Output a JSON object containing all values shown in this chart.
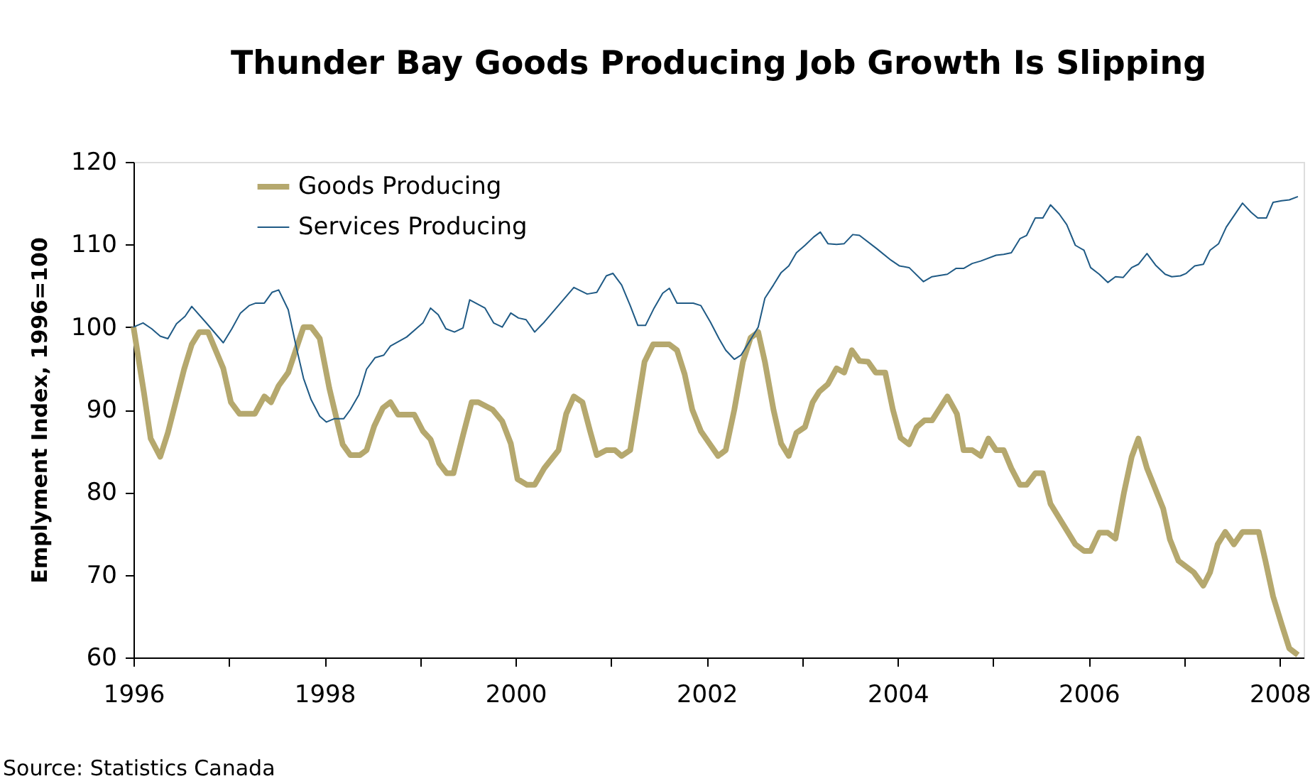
{
  "chart_data": {
    "type": "line",
    "title": "Thunder Bay Goods Producing Job Growth Is Slipping",
    "ylabel": "Emplyment Index, 1996=100",
    "annotations": [
      "Source: Statistics Canada"
    ],
    "xlim": [
      1996,
      2008.25
    ],
    "ylim": [
      60,
      120
    ],
    "xticks": [
      1996,
      {
        "value": 1997,
        "label": null
      },
      1998,
      {
        "value": 1999,
        "label": null
      },
      2000,
      {
        "value": 2001,
        "label": null
      },
      2002,
      {
        "value": 2003,
        "label": null
      },
      2004,
      {
        "value": 2005,
        "label": null
      },
      2006,
      {
        "value": 2007,
        "label": null
      },
      2008
    ],
    "yticks": [
      60,
      70,
      80,
      90,
      100,
      110,
      120
    ],
    "grid": false,
    "legend": "top left",
    "marker": "none",
    "line_style": "solid",
    "series": [
      {
        "name": "Goods Producing",
        "color": "#b5a86e",
        "x": [
          1996.0,
          1996.11,
          1996.18,
          1996.28,
          1996.36,
          1996.53,
          1996.61,
          1996.69,
          1996.78,
          1996.94,
          1997.02,
          1997.11,
          1997.27,
          1997.37,
          1997.44,
          1997.52,
          1997.62,
          1997.78,
          1997.86,
          1997.95,
          1998.05,
          1998.19,
          1998.27,
          1998.37,
          1998.44,
          1998.52,
          1998.61,
          1998.69,
          1998.77,
          1998.94,
          1999.03,
          1999.11,
          1999.2,
          1999.28,
          1999.35,
          1999.45,
          1999.54,
          1999.61,
          1999.76,
          1999.86,
          1999.95,
          2000.02,
          2000.12,
          2000.2,
          2000.3,
          2000.45,
          2000.53,
          2000.61,
          2000.7,
          2000.78,
          2000.85,
          2000.95,
          2001.04,
          2001.11,
          2001.2,
          2001.27,
          2001.35,
          2001.44,
          2001.61,
          2001.69,
          2001.77,
          2001.85,
          2001.94,
          2002.03,
          2002.12,
          2002.2,
          2002.29,
          2002.38,
          2002.46,
          2002.54,
          2002.61,
          2002.7,
          2002.78,
          2002.86,
          2002.94,
          2003.03,
          2003.11,
          2003.18,
          2003.27,
          2003.36,
          2003.44,
          2003.52,
          2003.6,
          2003.69,
          2003.77,
          2003.87,
          2003.95,
          2004.03,
          2004.12,
          2004.2,
          2004.28,
          2004.36,
          2004.52,
          2004.62,
          2004.69,
          2004.78,
          2004.87,
          2004.95,
          2005.03,
          2005.11,
          2005.19,
          2005.28,
          2005.35,
          2005.44,
          2005.52,
          2005.6,
          2005.69,
          2005.86,
          2005.95,
          2006.02,
          2006.11,
          2006.2,
          2006.28,
          2006.37,
          2006.45,
          2006.52,
          2006.61,
          2006.78,
          2006.85,
          2006.94,
          2007.1,
          2007.2,
          2007.27,
          2007.35,
          2007.43,
          2007.52,
          2007.61,
          2007.78,
          2007.85,
          2007.93,
          2008.02,
          2008.1,
          2008.19
        ],
        "values": [
          100,
          92,
          86.5,
          84.3,
          87.2,
          94.9,
          97.9,
          99.4,
          99.4,
          95,
          90.9,
          89.5,
          89.5,
          91.6,
          90.9,
          92.9,
          94.5,
          100,
          100,
          98.6,
          92.6,
          85.8,
          84.5,
          84.5,
          85.1,
          88,
          90.2,
          90.9,
          89.4,
          89.4,
          87.4,
          86.4,
          83.5,
          82.3,
          82.3,
          86.9,
          90.9,
          90.9,
          90,
          88.6,
          85.9,
          81.6,
          80.9,
          80.9,
          82.9,
          85.1,
          89.5,
          91.6,
          90.9,
          87.4,
          84.5,
          85.1,
          85.1,
          84.4,
          85.1,
          90,
          95.8,
          97.9,
          97.9,
          97.2,
          94.3,
          90,
          87.4,
          85.9,
          84.4,
          85.1,
          90,
          95.8,
          98.7,
          99.4,
          95.8,
          90,
          85.9,
          84.4,
          87.2,
          87.9,
          90.9,
          92.2,
          93.1,
          95,
          94.5,
          97.2,
          95.9,
          95.8,
          94.5,
          94.5,
          90,
          86.6,
          85.8,
          87.9,
          88.7,
          88.7,
          91.6,
          89.5,
          85.1,
          85.1,
          84.4,
          86.5,
          85.1,
          85.1,
          82.9,
          80.9,
          80.9,
          82.3,
          82.3,
          78.6,
          76.9,
          73.7,
          72.9,
          72.9,
          75.1,
          75.1,
          74.4,
          80,
          84.3,
          86.5,
          82.9,
          78,
          74.3,
          71.7,
          70.3,
          68.7,
          70.3,
          73.7,
          75.2,
          73.7,
          75.2,
          75.2,
          71.7,
          67.4,
          64,
          61.1,
          60.3
        ]
      },
      {
        "name": "Services Producing",
        "color": "#1f5a85",
        "x": [
          1996.0,
          1996.1,
          1996.19,
          1996.28,
          1996.36,
          1996.45,
          1996.54,
          1996.61,
          1996.77,
          1996.94,
          1997.03,
          1997.12,
          1997.21,
          1997.28,
          1997.37,
          1997.45,
          1997.52,
          1997.62,
          1997.7,
          1997.78,
          1997.86,
          1997.95,
          1998.02,
          1998.1,
          1998.2,
          1998.27,
          1998.36,
          1998.44,
          1998.53,
          1998.62,
          1998.69,
          1998.86,
          1998.97,
          1999.03,
          1999.11,
          1999.19,
          1999.27,
          1999.36,
          1999.45,
          1999.52,
          1999.68,
          1999.77,
          1999.86,
          1999.95,
          2000.03,
          2000.11,
          2000.2,
          2000.3,
          2000.44,
          2000.61,
          2000.75,
          2000.85,
          2000.95,
          2001.02,
          2001.11,
          2001.2,
          2001.28,
          2001.36,
          2001.45,
          2001.54,
          2001.61,
          2001.69,
          2001.86,
          2001.94,
          2002.04,
          2002.13,
          2002.2,
          2002.29,
          2002.36,
          2002.45,
          2002.54,
          2002.61,
          2002.7,
          2002.78,
          2002.86,
          2002.94,
          2003.03,
          2003.12,
          2003.19,
          2003.27,
          2003.36,
          2003.44,
          2003.53,
          2003.6,
          2003.78,
          2003.93,
          2004.02,
          2004.12,
          2004.27,
          2004.36,
          2004.52,
          2004.61,
          2004.69,
          2004.78,
          2004.87,
          2005.03,
          2005.11,
          2005.19,
          2005.28,
          2005.35,
          2005.44,
          2005.52,
          2005.6,
          2005.69,
          2005.77,
          2005.86,
          2005.95,
          2006.02,
          2006.11,
          2006.2,
          2006.28,
          2006.36,
          2006.45,
          2006.52,
          2006.61,
          2006.7,
          2006.8,
          2006.87,
          2006.96,
          2007.02,
          2007.11,
          2007.2,
          2007.27,
          2007.36,
          2007.44,
          2007.61,
          2007.7,
          2007.77,
          2007.86,
          2007.93,
          2008.02,
          2008.1,
          2008.19
        ],
        "values": [
          100,
          100.5,
          99.8,
          98.9,
          98.6,
          100.4,
          101.3,
          102.5,
          100.4,
          98.1,
          99.8,
          101.7,
          102.6,
          102.9,
          102.9,
          104.2,
          104.5,
          102.1,
          97.8,
          93.8,
          91.2,
          89.2,
          88.5,
          88.9,
          88.9,
          90,
          91.8,
          94.9,
          96.3,
          96.6,
          97.7,
          98.8,
          99.9,
          100.5,
          102.3,
          101.5,
          99.8,
          99.4,
          99.9,
          103.3,
          102.3,
          100.5,
          100,
          101.7,
          101.1,
          100.9,
          99.4,
          100.6,
          102.5,
          104.8,
          104,
          104.2,
          106.2,
          106.5,
          105.1,
          102.6,
          100.2,
          100.2,
          102.3,
          104.1,
          104.7,
          102.9,
          102.9,
          102.6,
          100.6,
          98.6,
          97.2,
          96.1,
          96.6,
          98.3,
          100,
          103.5,
          105.1,
          106.6,
          107.4,
          109,
          109.9,
          110.9,
          111.5,
          110.1,
          110,
          110.1,
          111.2,
          111.1,
          109.5,
          108.1,
          107.4,
          107.2,
          105.5,
          106.1,
          106.4,
          107.1,
          107.1,
          107.7,
          108,
          108.7,
          108.8,
          109,
          110.7,
          111.1,
          113.2,
          113.2,
          114.8,
          113.7,
          112.4,
          109.9,
          109.3,
          107.2,
          106.4,
          105.4,
          106.1,
          106,
          107.2,
          107.6,
          108.9,
          107.5,
          106.4,
          106.1,
          106.2,
          106.5,
          107.4,
          107.6,
          109.3,
          110.1,
          112.1,
          115,
          113.9,
          113.2,
          113.2,
          115.1,
          115.3,
          115.4,
          115.8
        ]
      }
    ]
  }
}
